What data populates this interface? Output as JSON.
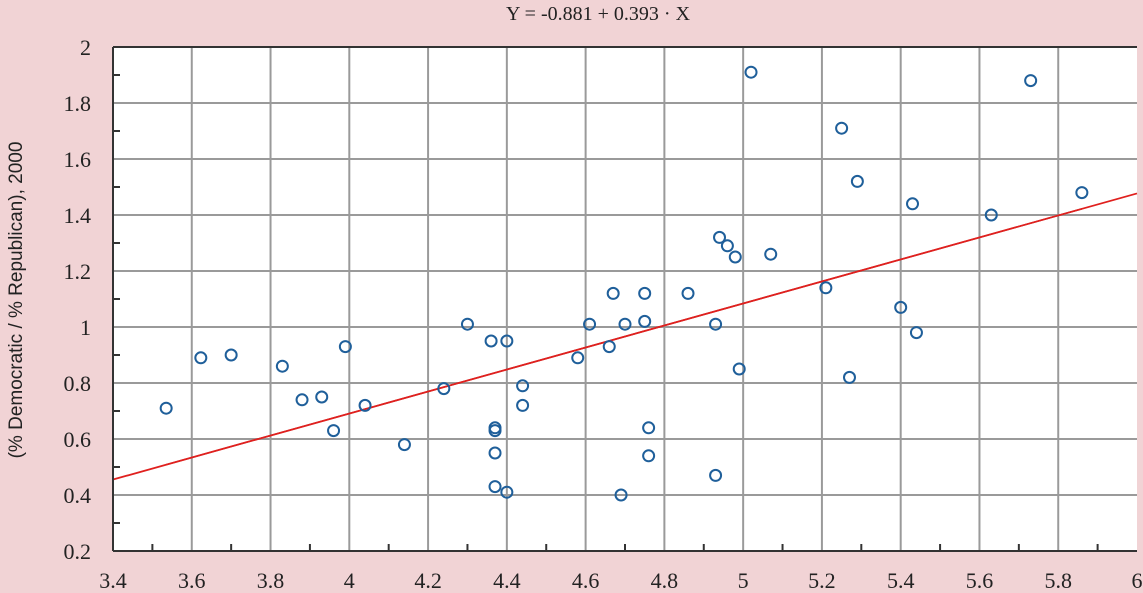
{
  "chart_data": {
    "type": "scatter",
    "title": "Y = -0.881 + 0.393 · X",
    "xlabel": "",
    "ylabel": "(% Democratic / % Republican), 2000",
    "xlim": [
      3.4,
      6
    ],
    "ylim": [
      0.2,
      2
    ],
    "xticks": [
      "3.4",
      "3.6",
      "3.8",
      "4",
      "4.2",
      "4.4",
      "4.6",
      "4.8",
      "5",
      "5.2",
      "5.4",
      "5.6",
      "5.8",
      "6"
    ],
    "yticks": [
      "0.2",
      "0.4",
      "0.6",
      "0.8",
      "1",
      "1.2",
      "1.4",
      "1.6",
      "1.8",
      "2"
    ],
    "grid": true,
    "regression": {
      "intercept": -0.881,
      "slope": 0.393
    },
    "colors": {
      "points": "#1f5f9a",
      "line": "#e0201e",
      "background": "#f1d3d5"
    },
    "points": [
      [
        3.535,
        0.71
      ],
      [
        3.623,
        0.89
      ],
      [
        3.7,
        0.9
      ],
      [
        3.83,
        0.86
      ],
      [
        3.88,
        0.74
      ],
      [
        3.93,
        0.75
      ],
      [
        3.96,
        0.63
      ],
      [
        3.99,
        0.93
      ],
      [
        4.04,
        0.72
      ],
      [
        4.14,
        0.58
      ],
      [
        4.24,
        0.78
      ],
      [
        4.3,
        1.01
      ],
      [
        4.36,
        0.95
      ],
      [
        4.4,
        0.95
      ],
      [
        4.37,
        0.64
      ],
      [
        4.37,
        0.63
      ],
      [
        4.37,
        0.55
      ],
      [
        4.37,
        0.43
      ],
      [
        4.4,
        0.41
      ],
      [
        4.44,
        0.79
      ],
      [
        4.44,
        0.72
      ],
      [
        4.58,
        0.89
      ],
      [
        4.61,
        1.01
      ],
      [
        4.66,
        0.93
      ],
      [
        4.67,
        1.12
      ],
      [
        4.7,
        1.01
      ],
      [
        4.69,
        0.4
      ],
      [
        4.75,
        1.12
      ],
      [
        4.75,
        1.02
      ],
      [
        4.76,
        0.64
      ],
      [
        4.76,
        0.54
      ],
      [
        4.86,
        1.12
      ],
      [
        4.93,
        1.01
      ],
      [
        4.93,
        0.47
      ],
      [
        4.94,
        1.32
      ],
      [
        4.96,
        1.29
      ],
      [
        4.98,
        1.25
      ],
      [
        4.99,
        0.85
      ],
      [
        5.02,
        1.91
      ],
      [
        5.07,
        1.26
      ],
      [
        5.21,
        1.14
      ],
      [
        5.25,
        1.71
      ],
      [
        5.27,
        0.82
      ],
      [
        5.29,
        1.52
      ],
      [
        5.4,
        1.07
      ],
      [
        5.43,
        1.44
      ],
      [
        5.44,
        0.98
      ],
      [
        5.63,
        1.4
      ],
      [
        5.73,
        1.88
      ],
      [
        5.86,
        1.48
      ]
    ]
  }
}
